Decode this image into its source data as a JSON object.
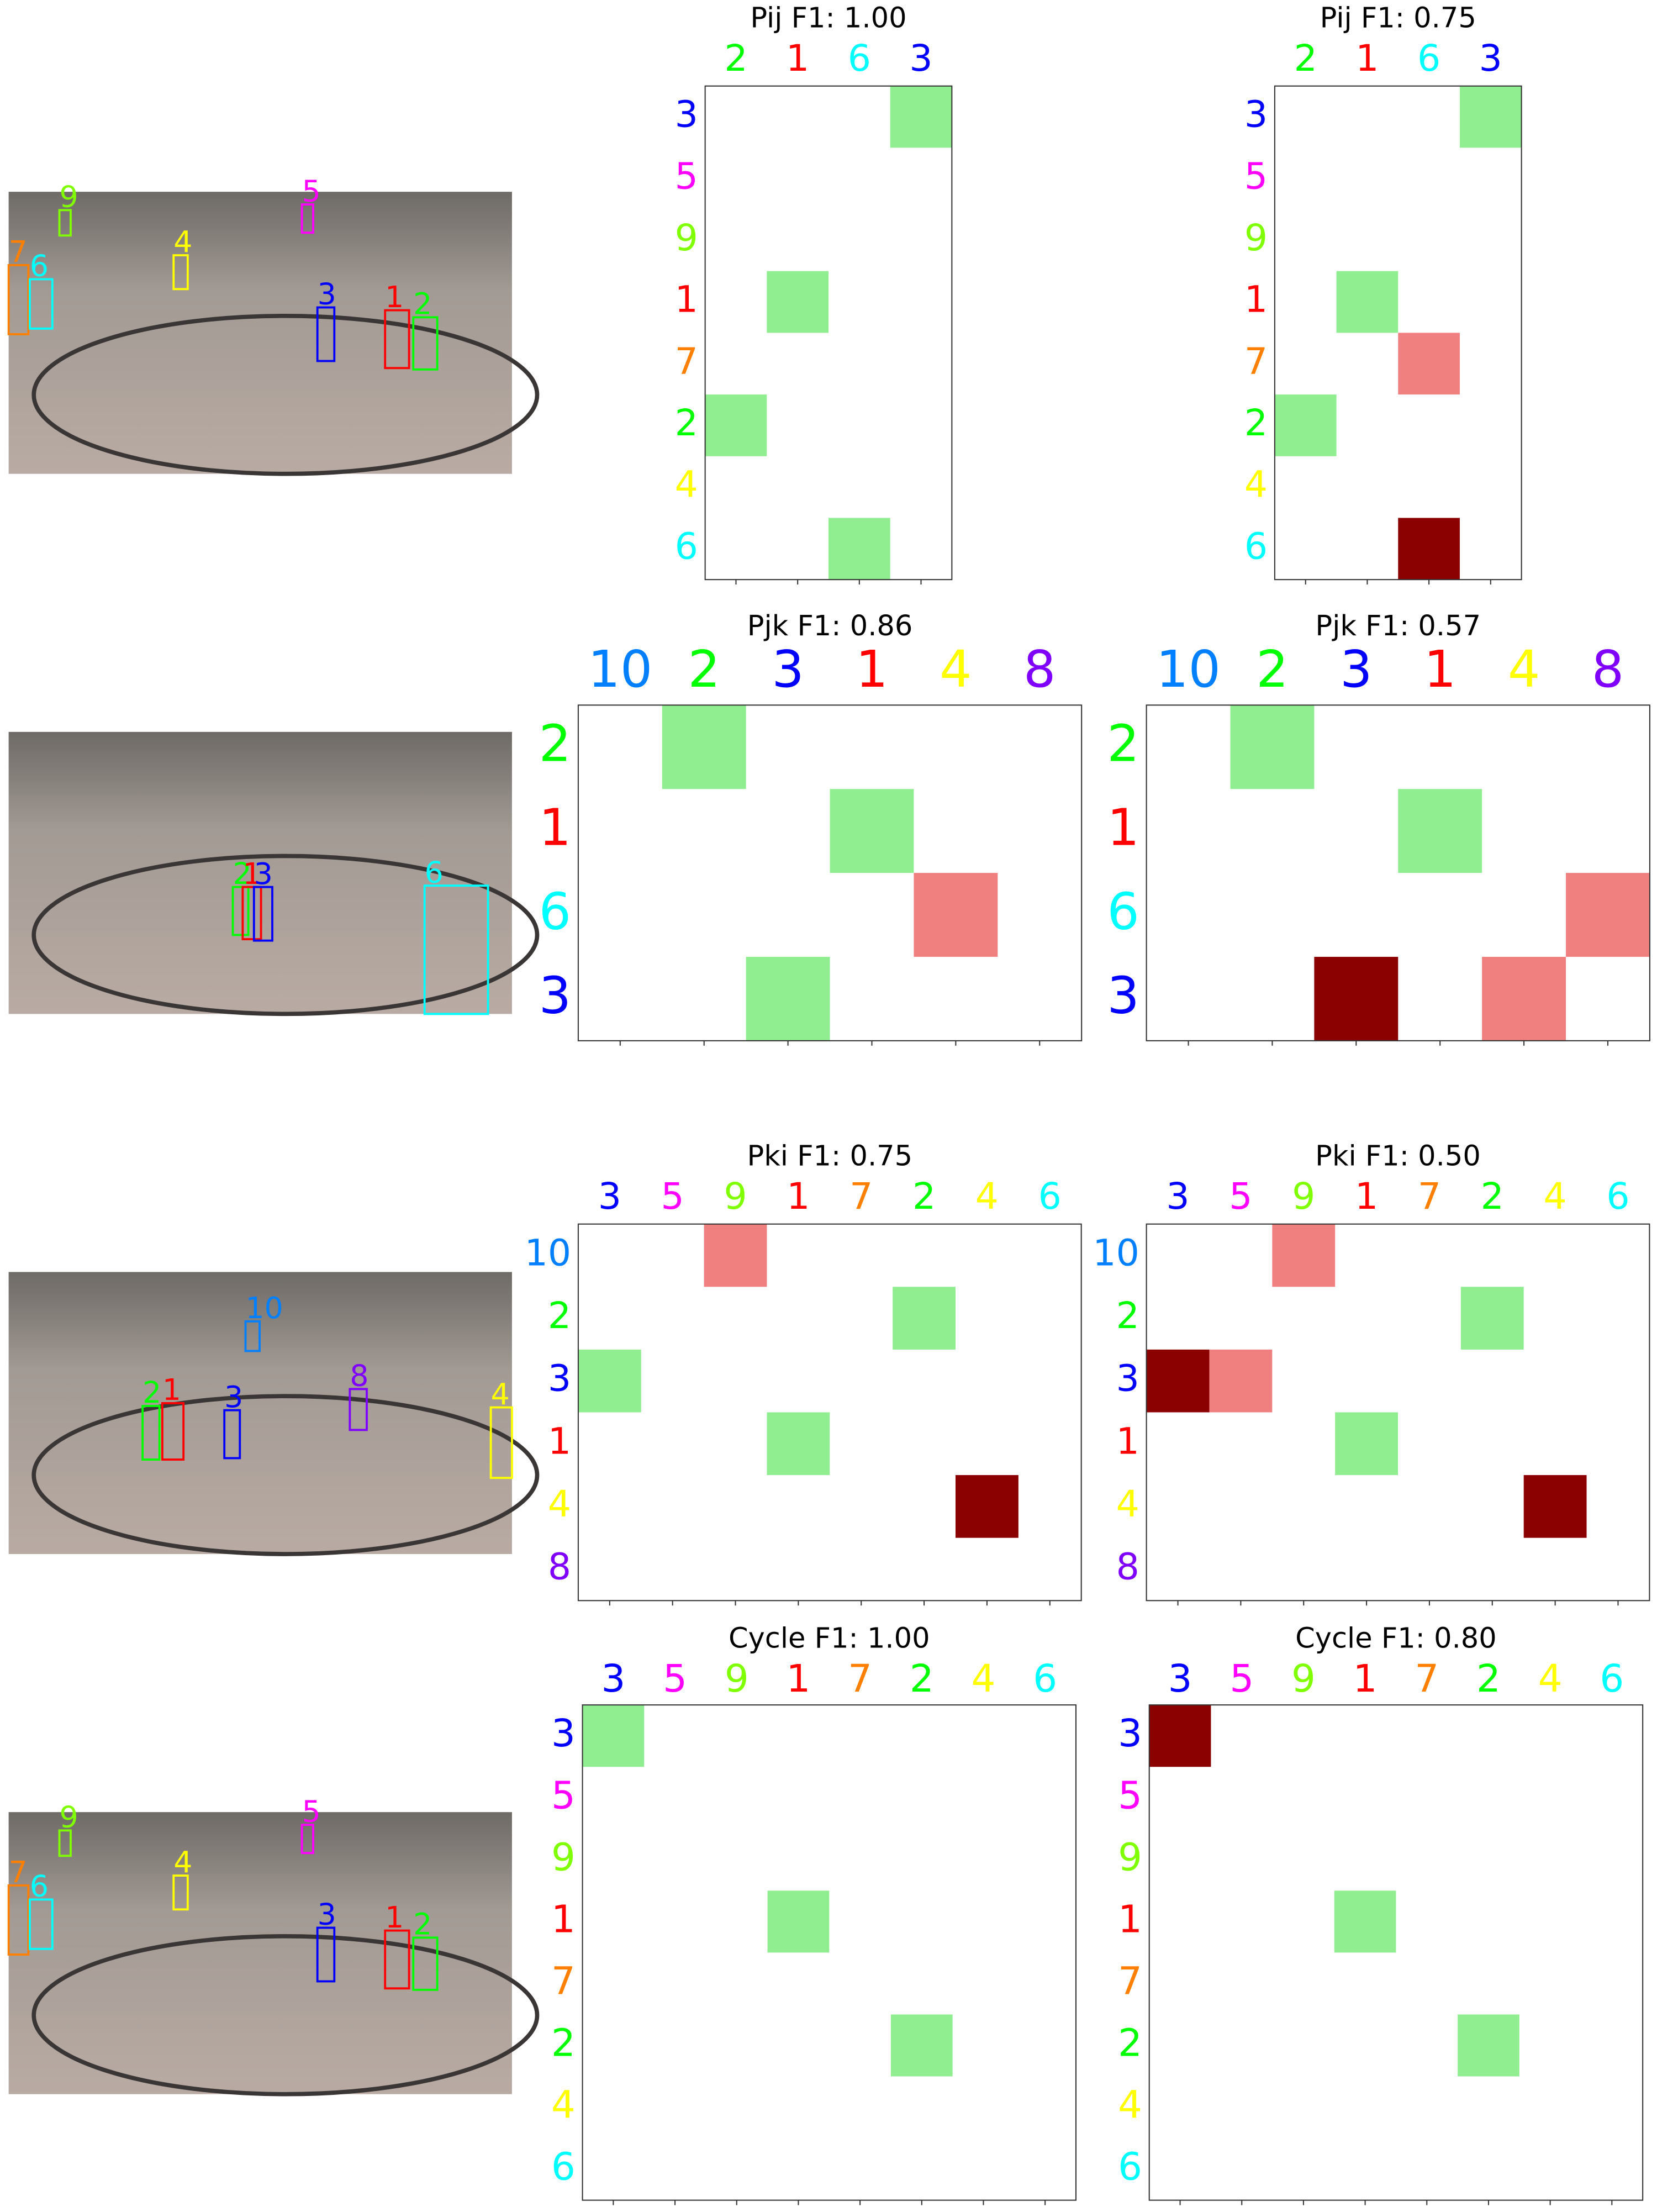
{
  "id_colors": {
    "1": "#ff0000",
    "2": "#00ff00",
    "3": "#0000ff",
    "4": "#ffff00",
    "5": "#ff00ff",
    "6": "#00ffff",
    "7": "#ff8000",
    "8": "#8000ff",
    "9": "#80ff00",
    "10": "#0080ff"
  },
  "rows": [
    {
      "image": {
        "boxes": [
          "9",
          "5",
          "4",
          "7",
          "6",
          "3",
          "1",
          "2"
        ]
      },
      "plots": [
        {
          "title": "Pij F1: 1.00",
          "columns": [
            "2",
            "1",
            "6",
            "3"
          ],
          "rows": [
            "3",
            "5",
            "9",
            "1",
            "7",
            "2",
            "4",
            "6"
          ],
          "cells": [
            [
              null,
              null,
              null,
              "#90ee90"
            ],
            [
              null,
              null,
              null,
              null
            ],
            [
              null,
              null,
              null,
              null
            ],
            [
              null,
              "#90ee90",
              null,
              null
            ],
            [
              null,
              null,
              null,
              null
            ],
            [
              "#90ee90",
              null,
              null,
              null
            ],
            [
              null,
              null,
              null,
              null
            ],
            [
              null,
              null,
              "#90ee90",
              null
            ]
          ]
        },
        {
          "title": "Pij F1: 0.75",
          "columns": [
            "2",
            "1",
            "6",
            "3"
          ],
          "rows": [
            "3",
            "5",
            "9",
            "1",
            "7",
            "2",
            "4",
            "6"
          ],
          "cells": [
            [
              null,
              null,
              null,
              "#90ee90"
            ],
            [
              null,
              null,
              null,
              null
            ],
            [
              null,
              null,
              null,
              null
            ],
            [
              null,
              "#90ee90",
              null,
              null
            ],
            [
              null,
              null,
              "#f08080",
              null
            ],
            [
              "#90ee90",
              null,
              null,
              null
            ],
            [
              null,
              null,
              null,
              null
            ],
            [
              null,
              null,
              "#8b0000",
              null
            ]
          ]
        }
      ]
    },
    {
      "image": {
        "boxes": [
          "2",
          "1",
          "3",
          "6"
        ]
      },
      "plots": [
        {
          "title": "Pjk F1: 0.86",
          "columns": [
            "10",
            "2",
            "3",
            "1",
            "4",
            "8"
          ],
          "rows": [
            "2",
            "1",
            "6",
            "3"
          ],
          "cells": [
            [
              null,
              "#90ee90",
              null,
              null,
              null,
              null
            ],
            [
              null,
              null,
              null,
              "#90ee90",
              null,
              null
            ],
            [
              null,
              null,
              null,
              null,
              "#f08080",
              null
            ],
            [
              null,
              null,
              "#90ee90",
              null,
              null,
              null
            ]
          ]
        },
        {
          "title": "Pjk F1: 0.57",
          "columns": [
            "10",
            "2",
            "3",
            "1",
            "4",
            "8"
          ],
          "rows": [
            "2",
            "1",
            "6",
            "3"
          ],
          "cells": [
            [
              null,
              "#90ee90",
              null,
              null,
              null,
              null
            ],
            [
              null,
              null,
              null,
              "#90ee90",
              null,
              null
            ],
            [
              null,
              null,
              null,
              null,
              null,
              "#f08080"
            ],
            [
              null,
              null,
              "#8b0000",
              null,
              "#f08080",
              null
            ]
          ]
        }
      ]
    },
    {
      "image": {
        "boxes": [
          "10",
          "2",
          "1",
          "3",
          "8",
          "4"
        ]
      },
      "plots": [
        {
          "title": "Pki F1: 0.75",
          "columns": [
            "3",
            "5",
            "9",
            "1",
            "7",
            "2",
            "4",
            "6"
          ],
          "rows": [
            "10",
            "2",
            "3",
            "1",
            "4",
            "8"
          ],
          "cells": [
            [
              null,
              null,
              "#f08080",
              null,
              null,
              null,
              null,
              null
            ],
            [
              null,
              null,
              null,
              null,
              null,
              "#90ee90",
              null,
              null
            ],
            [
              "#90ee90",
              null,
              null,
              null,
              null,
              null,
              null,
              null
            ],
            [
              null,
              null,
              null,
              "#90ee90",
              null,
              null,
              null,
              null
            ],
            [
              null,
              null,
              null,
              null,
              null,
              null,
              "#8b0000",
              null
            ],
            [
              null,
              null,
              null,
              null,
              null,
              null,
              null,
              null
            ]
          ]
        },
        {
          "title": "Pki F1: 0.50",
          "columns": [
            "3",
            "5",
            "9",
            "1",
            "7",
            "2",
            "4",
            "6"
          ],
          "rows": [
            "10",
            "2",
            "3",
            "1",
            "4",
            "8"
          ],
          "cells": [
            [
              null,
              null,
              "#f08080",
              null,
              null,
              null,
              null,
              null
            ],
            [
              null,
              null,
              null,
              null,
              null,
              "#90ee90",
              null,
              null
            ],
            [
              "#8b0000",
              "#f08080",
              null,
              null,
              null,
              null,
              null,
              null
            ],
            [
              null,
              null,
              null,
              "#90ee90",
              null,
              null,
              null,
              null
            ],
            [
              null,
              null,
              null,
              null,
              null,
              null,
              "#8b0000",
              null
            ],
            [
              null,
              null,
              null,
              null,
              null,
              null,
              null,
              null
            ]
          ]
        }
      ]
    },
    {
      "image": {
        "boxes": [
          "9",
          "5",
          "4",
          "7",
          "6",
          "3",
          "1",
          "2"
        ]
      },
      "plots": [
        {
          "title": "Cycle F1: 1.00",
          "columns": [
            "3",
            "5",
            "9",
            "1",
            "7",
            "2",
            "4",
            "6"
          ],
          "rows": [
            "3",
            "5",
            "9",
            "1",
            "7",
            "2",
            "4",
            "6"
          ],
          "cells": [
            [
              "#90ee90",
              null,
              null,
              null,
              null,
              null,
              null,
              null
            ],
            [
              null,
              null,
              null,
              null,
              null,
              null,
              null,
              null
            ],
            [
              null,
              null,
              null,
              null,
              null,
              null,
              null,
              null
            ],
            [
              null,
              null,
              null,
              "#90ee90",
              null,
              null,
              null,
              null
            ],
            [
              null,
              null,
              null,
              null,
              null,
              null,
              null,
              null
            ],
            [
              null,
              null,
              null,
              null,
              null,
              "#90ee90",
              null,
              null
            ],
            [
              null,
              null,
              null,
              null,
              null,
              null,
              null,
              null
            ],
            [
              null,
              null,
              null,
              null,
              null,
              null,
              null,
              null
            ]
          ]
        },
        {
          "title": "Cycle F1: 0.80",
          "columns": [
            "3",
            "5",
            "9",
            "1",
            "7",
            "2",
            "4",
            "6"
          ],
          "rows": [
            "3",
            "5",
            "9",
            "1",
            "7",
            "2",
            "4",
            "6"
          ],
          "cells": [
            [
              "#8b0000",
              null,
              null,
              null,
              null,
              null,
              null,
              null
            ],
            [
              null,
              null,
              null,
              null,
              null,
              null,
              null,
              null
            ],
            [
              null,
              null,
              null,
              null,
              null,
              null,
              null,
              null
            ],
            [
              null,
              null,
              null,
              "#90ee90",
              null,
              null,
              null,
              null
            ],
            [
              null,
              null,
              null,
              null,
              null,
              null,
              null,
              null
            ],
            [
              null,
              null,
              null,
              null,
              null,
              "#90ee90",
              null,
              null
            ],
            [
              null,
              null,
              null,
              null,
              null,
              null,
              null,
              null
            ],
            [
              null,
              null,
              null,
              null,
              null,
              null,
              null,
              null
            ]
          ]
        }
      ]
    }
  ]
}
